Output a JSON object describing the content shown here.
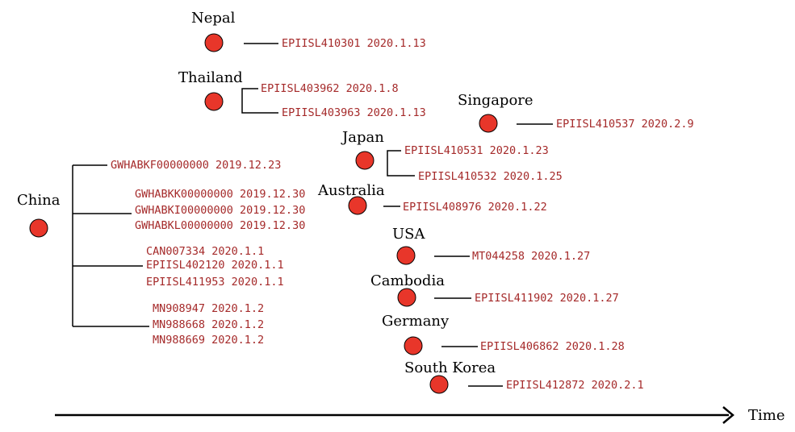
{
  "colors": {
    "node": "#e8362a",
    "sequence_text": "#a52a2a",
    "line": "#000000"
  },
  "axis": {
    "label": "Time"
  },
  "countries": [
    {
      "name": "Nepal",
      "sequences": [
        "EPIISL410301 2020.1.13"
      ]
    },
    {
      "name": "Thailand",
      "sequences": [
        "EPIISL403962 2020.1.8",
        "EPIISL403963 2020.1.13"
      ]
    },
    {
      "name": "Singapore",
      "sequences": [
        "EPIISL410537 2020.2.9"
      ]
    },
    {
      "name": "Japan",
      "sequences": [
        "EPIISL410531 2020.1.23",
        "EPIISL410532 2020.1.25"
      ]
    },
    {
      "name": "Australia",
      "sequences": [
        "EPIISL408976 2020.1.22"
      ]
    },
    {
      "name": "USA",
      "sequences": [
        "MT044258 2020.1.27"
      ]
    },
    {
      "name": "Cambodia",
      "sequences": [
        "EPIISL411902 2020.1.27"
      ]
    },
    {
      "name": "Germany",
      "sequences": [
        "EPIISL406862 2020.1.28"
      ]
    },
    {
      "name": "South Korea",
      "sequences": [
        "EPIISL412872 2020.2.1"
      ]
    }
  ],
  "china": {
    "name": "China",
    "groups": [
      [
        "GWHABKF00000000 2019.12.23"
      ],
      [
        "GWHABKK00000000 2019.12.30",
        "GWHABKI00000000 2019.12.30",
        "GWHABKL00000000 2019.12.30"
      ],
      [
        "CAN007334 2020.1.1",
        "EPIISL402120 2020.1.1",
        "EPIISL411953 2020.1.1"
      ],
      [
        "MN908947 2020.1.2",
        "MN988668 2020.1.2",
        "MN988669 2020.1.2"
      ]
    ]
  }
}
